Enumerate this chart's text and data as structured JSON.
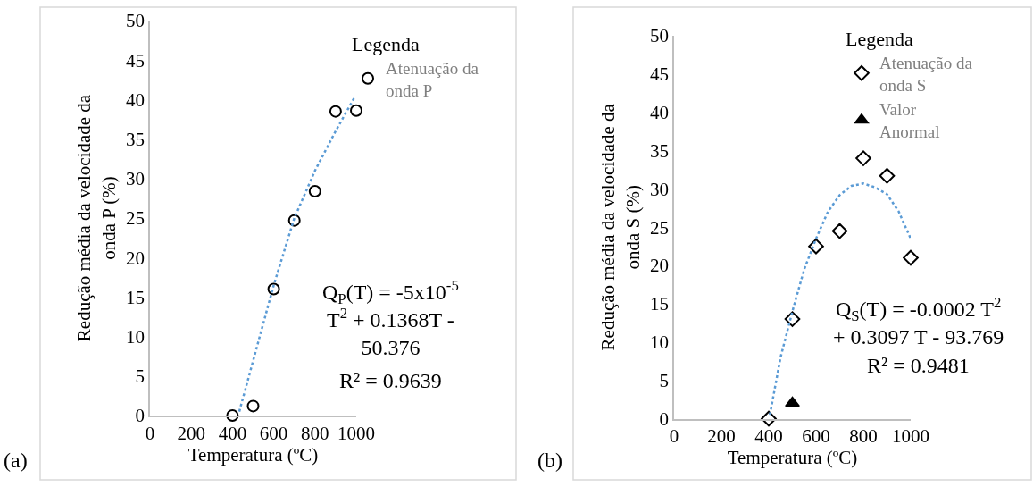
{
  "chart_data": [
    {
      "type": "scatter",
      "xlabel": "Temperatura (ºC)",
      "ylabel": "Redução média da velocidade da onda P (%)",
      "xlim": [
        0,
        1000
      ],
      "xticks": [
        0,
        200,
        400,
        600,
        800,
        1000
      ],
      "ylim": [
        0,
        50
      ],
      "yticks": [
        0,
        5,
        10,
        15,
        20,
        25,
        30,
        35,
        40,
        45,
        50
      ],
      "legend": "top right",
      "legend_title": "Legenda",
      "series": [
        {
          "name": "Atenuação da onda P",
          "color": "#000000",
          "marker": "circle",
          "x": [
            400,
            500,
            600,
            700,
            800,
            900,
            1000
          ],
          "values": [
            0,
            1.2,
            16,
            24.7,
            28.4,
            38.5,
            38.6
          ]
        },
        {
          "type": "line",
          "color": "#5b9bd5",
          "line_style": "dotted",
          "marker": "none",
          "x": [
            433,
            600,
            700,
            800,
            900,
            990
          ],
          "values": [
            0.5,
            16.5,
            25,
            31,
            36,
            40.2
          ]
        }
      ],
      "annotations": [
        "Q$_{P}$(T) = -5x10$^{-5}$ T$^{2}$ + 0.1368T - 50.376",
        "R² = 0.9639",
        "(a)"
      ]
    },
    {
      "type": "scatter",
      "xlabel": "Temperatura (ºC)",
      "ylabel": "Redução média da velocidade da onda S (%)",
      "xlim": [
        0,
        1000
      ],
      "xticks": [
        0,
        200,
        400,
        600,
        800,
        1000
      ],
      "ylim": [
        0,
        50
      ],
      "yticks": [
        0,
        5,
        10,
        15,
        20,
        25,
        30,
        35,
        40,
        45,
        50
      ],
      "legend": "top right",
      "legend_title": "Legenda",
      "series": [
        {
          "name": "Atenuação da onda S",
          "color": "#000000",
          "marker": "diamond",
          "x": [
            400,
            500,
            600,
            700,
            800,
            900,
            1000
          ],
          "values": [
            0,
            13,
            22.5,
            24.5,
            34,
            31.7,
            21
          ]
        },
        {
          "name": "Valor Anormal",
          "color": "#000000",
          "marker": "triangle",
          "x": [
            500
          ],
          "values": [
            2
          ]
        },
        {
          "type": "line",
          "color": "#5b9bd5",
          "line_style": "dotted",
          "marker": "none",
          "x": [
            405,
            450,
            500,
            550,
            600,
            650,
            700,
            750,
            800,
            850,
            900,
            950,
            1000
          ],
          "values": [
            0.5,
            8,
            14,
            19.5,
            23.5,
            27,
            29.2,
            30.4,
            30.7,
            30.2,
            29.3,
            27,
            23.5
          ]
        }
      ],
      "annotations": [
        "Q$_{S}$(T) = -0.0002 T$^{2}$ + 0.3097 T - 93.769",
        "R² = 0.9481",
        "(b)"
      ]
    }
  ]
}
